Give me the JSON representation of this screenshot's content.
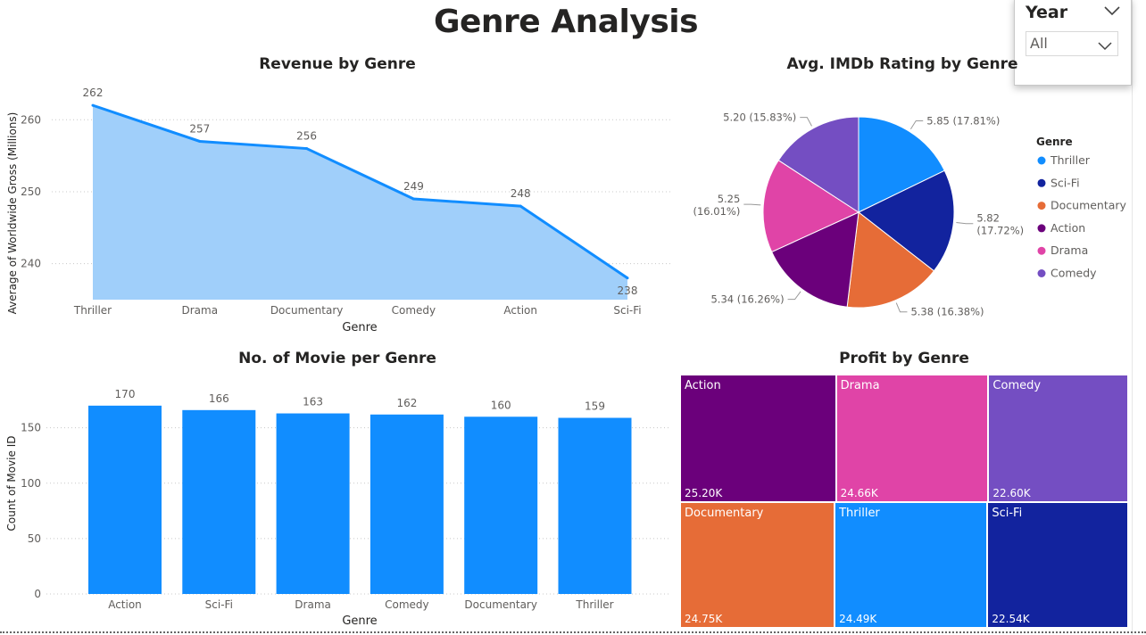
{
  "page": {
    "title": "Genre Analysis"
  },
  "slicer": {
    "title": "Year",
    "value": "All"
  },
  "chart_data": [
    {
      "id": "revenue",
      "type": "area",
      "title": "Revenue by Genre",
      "xlabel": "Genre",
      "ylabel": "Average of Worldwide Gross (Millions)",
      "categories": [
        "Thriller",
        "Drama",
        "Documentary",
        "Comedy",
        "Action",
        "Sci-Fi"
      ],
      "values": [
        262,
        257,
        256,
        249,
        248,
        238
      ],
      "value_labels": [
        "262",
        "257",
        "256",
        "249",
        "248",
        "238"
      ],
      "y_ticks": [
        240,
        250,
        260
      ],
      "ylim": [
        235,
        264
      ],
      "grid": true,
      "colors": {
        "line": "#118dff",
        "area": "#a0cffa"
      }
    },
    {
      "id": "rating",
      "type": "pie",
      "title": "Avg. IMDb Rating by Genre",
      "legend_title": "Genre",
      "legend_position": "right",
      "slices": [
        {
          "name": "Thriller",
          "value": 5.85,
          "label": "5.85 (17.81%)",
          "color": "#118dff"
        },
        {
          "name": "Sci-Fi",
          "value": 5.82,
          "label": "5.82 (17.72%)",
          "color": "#12239e"
        },
        {
          "name": "Documentary",
          "value": 5.38,
          "label": "5.38 (16.38%)",
          "color": "#e66c37"
        },
        {
          "name": "Action",
          "value": 5.34,
          "label": "5.34 (16.26%)",
          "color": "#6b007b"
        },
        {
          "name": "Drama",
          "value": 5.25,
          "label": "5.25 (16.01%)",
          "color": "#e044a7"
        },
        {
          "name": "Comedy",
          "value": 5.2,
          "label": "5.20 (15.83%)",
          "color": "#744ec2"
        }
      ]
    },
    {
      "id": "count",
      "type": "bar",
      "title": "No. of Movie per Genre",
      "xlabel": "Genre",
      "ylabel": "Count of Movie ID",
      "categories": [
        "Action",
        "Sci-Fi",
        "Drama",
        "Comedy",
        "Documentary",
        "Thriller"
      ],
      "values": [
        170,
        166,
        163,
        162,
        160,
        159
      ],
      "value_labels": [
        "170",
        "166",
        "163",
        "162",
        "160",
        "159"
      ],
      "y_ticks": [
        0,
        50,
        100,
        150
      ],
      "ylim": [
        0,
        190
      ],
      "grid": true,
      "colors": {
        "bar": "#118dff"
      }
    },
    {
      "id": "profit",
      "type": "treemap",
      "title": "Profit by Genre",
      "items": [
        {
          "name": "Action",
          "value": 25.2,
          "label": "25.20K",
          "color": "#6b007b"
        },
        {
          "name": "Drama",
          "value": 24.66,
          "label": "24.66K",
          "color": "#e044a7"
        },
        {
          "name": "Comedy",
          "value": 22.6,
          "label": "22.60K",
          "color": "#744ec2"
        },
        {
          "name": "Documentary",
          "value": 24.75,
          "label": "24.75K",
          "color": "#e66c37"
        },
        {
          "name": "Thriller",
          "value": 24.49,
          "label": "24.49K",
          "color": "#118dff"
        },
        {
          "name": "Sci-Fi",
          "value": 22.54,
          "label": "22.54K",
          "color": "#12239e"
        }
      ]
    }
  ]
}
